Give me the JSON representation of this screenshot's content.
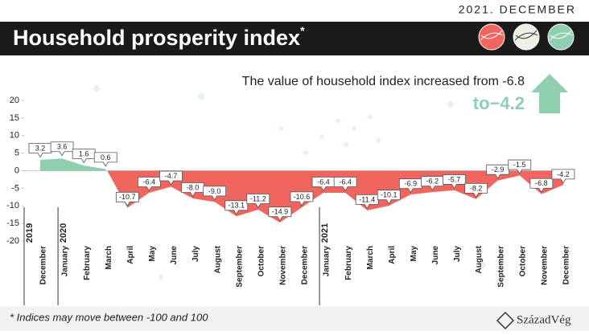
{
  "header": {
    "date": "2021. DECEMBER",
    "title": "Household prosperity index",
    "title_mark": "*"
  },
  "annotation": {
    "line1": "The value of household index increased from -6.8",
    "line2": "to−4.2"
  },
  "footnote": "* Indices may move between -100 and 100",
  "logo": "SzázadVég",
  "chart_data": {
    "type": "area",
    "categories": [
      "December",
      "January",
      "February",
      "March",
      "April",
      "May",
      "June",
      "July",
      "August",
      "September",
      "October",
      "November",
      "December",
      "January",
      "February",
      "March",
      "April",
      "May",
      "June",
      "July",
      "August",
      "September",
      "October",
      "November",
      "December"
    ],
    "year_labels": [
      "2019",
      "2020",
      null,
      null,
      null,
      null,
      null,
      null,
      null,
      null,
      null,
      null,
      null,
      "2021",
      null,
      null,
      null,
      null,
      null,
      null,
      null,
      null,
      null,
      null,
      null
    ],
    "values": [
      3.2,
      3.6,
      1.6,
      0.6,
      -10.7,
      -6.4,
      -4.7,
      -8.0,
      -9.0,
      -13.1,
      -11.2,
      -14.9,
      -10.6,
      -6.4,
      -6.4,
      -11.4,
      -10.1,
      -6.9,
      -6.2,
      -5.7,
      -8.2,
      -2.9,
      -1.5,
      -6.8,
      -4.2
    ],
    "value_labels": [
      "3.2",
      "3.6",
      "1.6",
      "0.6",
      "-10.7",
      "-6.4",
      "-4.7",
      "-8.0",
      "-9.0",
      "-13.1",
      "-11.2",
      "-14.9",
      "-10.6",
      "-6.4",
      "-6.4",
      "-11.4",
      "-10.1",
      "-6.9",
      "-6.2",
      "-5.7",
      "-8.2",
      "-2.9",
      "-1.5",
      "-6.8",
      "-4.2"
    ],
    "positive_color": "#8fcfb0",
    "negative_color": "#f0665e",
    "ylim": [
      -20,
      20
    ],
    "yticks": [
      20,
      15,
      10,
      5,
      0,
      -5,
      -10,
      -15,
      -20
    ]
  }
}
